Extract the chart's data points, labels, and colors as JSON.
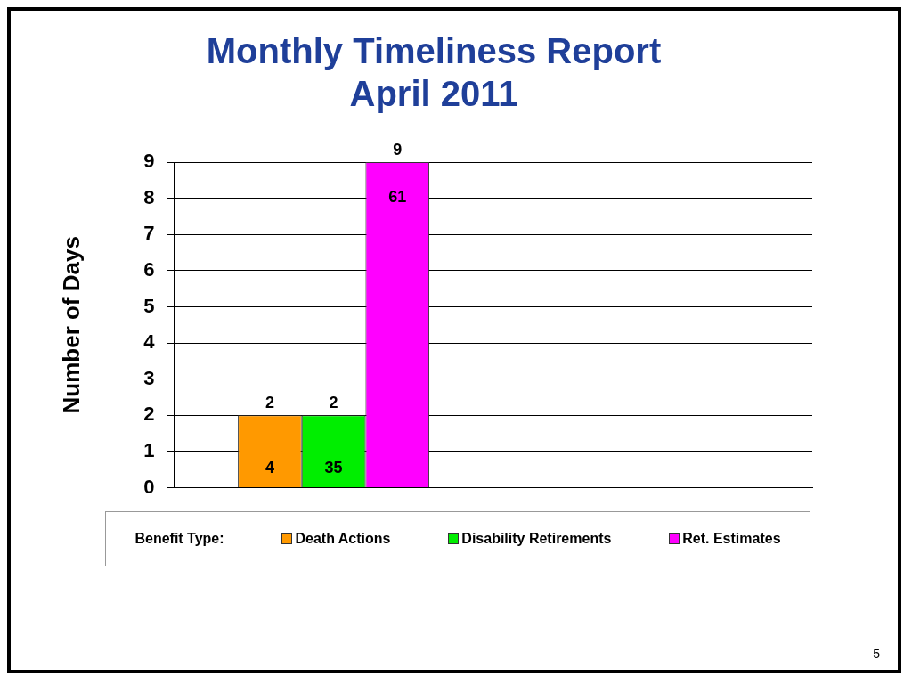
{
  "chart_data": {
    "type": "bar",
    "title": "Monthly Timeliness Report",
    "subtitle": "April 2011",
    "ylabel": "Number of Days",
    "legend_title": "Benefit Type:",
    "categories": [
      null,
      null
    ],
    "series": [
      {
        "name": "Death Actions",
        "color": "#ff9900",
        "values": [
          2,
          null
        ]
      },
      {
        "name": "Disability Retirements",
        "color": "#00ee00",
        "values": [
          2,
          null
        ]
      },
      {
        "name": "Ret. Estimates",
        "color": "#ff00ff",
        "values": [
          9,
          null
        ]
      }
    ],
    "ylim": [
      0,
      9
    ],
    "yticks": [
      0,
      1,
      2,
      3,
      4,
      5,
      6,
      7,
      8,
      9
    ],
    "grid": "y",
    "legend": "bottom",
    "data_labels": true,
    "annotations": [
      "4",
      "35",
      "61",
      "5"
    ]
  }
}
